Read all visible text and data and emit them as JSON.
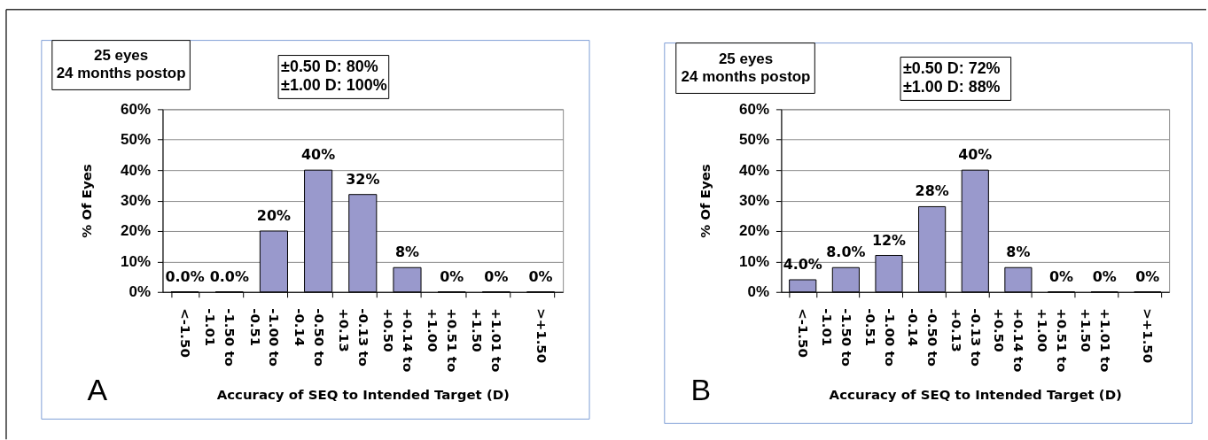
{
  "chart_data": [
    {
      "type": "bar",
      "categories": [
        "<-1.50",
        "-1.50 to\n-1.01",
        "-1.00 to\n-0.51",
        "-0.50 to\n-0.14",
        "-0.13 to\n+0.13",
        "+0.14 to\n+0.50",
        "+0.51 to\n+1.00",
        "+1.01 to\n+1.50",
        ">+1.50"
      ],
      "values": [
        0,
        0,
        20,
        40,
        32,
        8,
        0,
        0,
        0
      ],
      "color": "#9999cc",
      "value_labels": [
        "0.0%",
        "0.0%",
        "20%",
        "40%",
        "32%",
        "8%",
        "0%",
        "0%",
        "0%"
      ],
      "xlabel": "Accuracy of SEQ to Intended Target (D)",
      "ylabel": "% Of Eyes",
      "ylim": [
        0,
        60
      ],
      "yticks": [
        {
          "value": 0,
          "label": "0%"
        },
        {
          "value": 10,
          "label": "10%"
        },
        {
          "value": 20,
          "label": "20%"
        },
        {
          "value": 30,
          "label": "30%"
        },
        {
          "value": 40,
          "label": "40%"
        },
        {
          "value": 50,
          "label": "50%"
        },
        {
          "value": 60,
          "label": "60%"
        }
      ],
      "grid": "y",
      "annotations": [
        "25 eyes\n24 months postop",
        "±0.50 D: 80%\n±1.00 D: 100%",
        "A"
      ]
    },
    {
      "type": "bar",
      "categories": [
        "<-1.50",
        "-1.50 to\n-1.01",
        "-1.00 to\n-0.51",
        "-0.50 to\n-0.14",
        "-0.13 to\n+0.13",
        "+0.14 to\n+0.50",
        "+0.51 to\n+1.00",
        "+1.01 to\n+1.50",
        ">+1.50"
      ],
      "values": [
        4,
        8,
        12,
        28,
        40,
        8,
        0,
        0,
        0
      ],
      "color": "#9999cc",
      "value_labels": [
        "4.0%",
        "8.0%",
        "12%",
        "28%",
        "40%",
        "8%",
        "0%",
        "0%",
        "0%"
      ],
      "xlabel": "Accuracy of SEQ to Intended Target (D)",
      "ylabel": "% Of Eyes",
      "ylim": [
        0,
        60
      ],
      "yticks": [
        {
          "value": 0,
          "label": "0%"
        },
        {
          "value": 10,
          "label": "10%"
        },
        {
          "value": 20,
          "label": "20%"
        },
        {
          "value": 30,
          "label": "30%"
        },
        {
          "value": 40,
          "label": "40%"
        },
        {
          "value": 50,
          "label": "50%"
        },
        {
          "value": 60,
          "label": "60%"
        }
      ],
      "grid": "y",
      "annotations": [
        "25 eyes\n24 months postop",
        "±0.50 D: 72%\n±1.00 D: 88%",
        "B"
      ]
    }
  ]
}
